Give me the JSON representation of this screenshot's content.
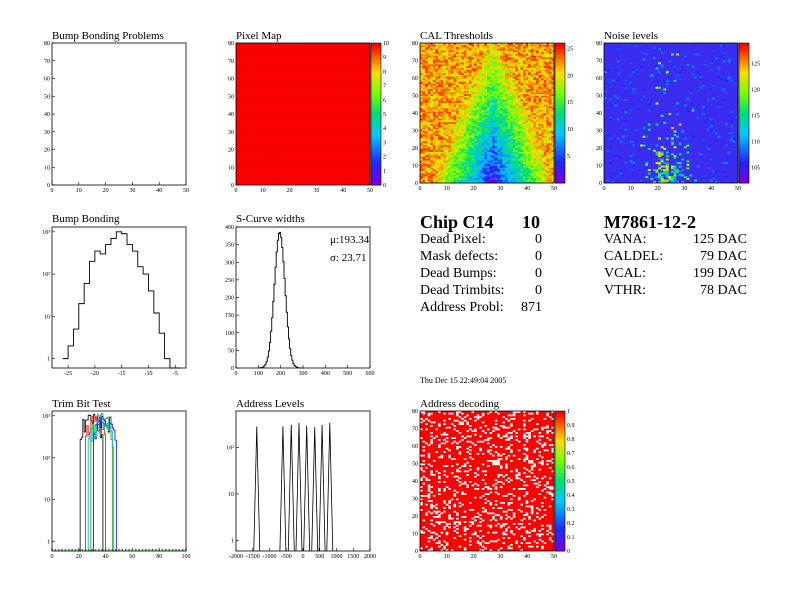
{
  "panels": {
    "bump_problems": {
      "title": "Bump Bonding Problems"
    },
    "pixel_map": {
      "title": "Pixel Map"
    },
    "cal_thresholds": {
      "title": "CAL Thresholds"
    },
    "noise_levels": {
      "title": "Noise levels"
    },
    "bump_bonding": {
      "title": "Bump Bonding"
    },
    "scurve_widths": {
      "title": "S-Curve widths",
      "mu": "μ:193.34",
      "sigma": "σ: 23.71"
    },
    "trim_bit": {
      "title": "Trim Bit Test"
    },
    "address_levels": {
      "title": "Address Levels"
    },
    "address_decoding": {
      "title": "Address decoding"
    }
  },
  "chip": {
    "name": "Chip C14",
    "number": "10",
    "rows": [
      {
        "label": "Dead Pixel:",
        "value": "0"
      },
      {
        "label": "Mask defects:",
        "value": "0"
      },
      {
        "label": "Dead Bumps:",
        "value": "0"
      },
      {
        "label": "Dead Trimbits:",
        "value": "0"
      },
      {
        "label": "Address Probl:",
        "value": "871"
      }
    ]
  },
  "module": {
    "name": "M7861-12-2",
    "rows": [
      {
        "label": "VANA:",
        "value": "125 DAC"
      },
      {
        "label": "CALDEL:",
        "value": "79 DAC"
      },
      {
        "label": "VCAL:",
        "value": "199 DAC"
      },
      {
        "label": "VTHR:",
        "value": "78 DAC"
      }
    ]
  },
  "timestamp": "Thu Dec 15 22:49:04 2005",
  "colors": {
    "red": "#ff0000",
    "frame": "#000000"
  },
  "chart_data": [
    {
      "id": "bump_problems",
      "type": "heatmap",
      "title": "Bump Bonding Problems",
      "xlim": [
        0,
        52
      ],
      "ylim": [
        0,
        80
      ],
      "xticks": [
        "0",
        "10",
        "20",
        "30",
        "40",
        "50"
      ],
      "yticks": [
        "0",
        "10",
        "20",
        "30",
        "40",
        "50",
        "60",
        "70",
        "80"
      ],
      "values": "empty"
    },
    {
      "id": "pixel_map",
      "type": "heatmap",
      "title": "Pixel Map",
      "xlim": [
        0,
        52
      ],
      "ylim": [
        0,
        80
      ],
      "xticks": [
        "0",
        "10",
        "20",
        "30",
        "40",
        "50"
      ],
      "yticks": [
        "0",
        "10",
        "20",
        "30",
        "40",
        "50",
        "60",
        "70",
        "80"
      ],
      "zticks": [
        "0",
        "1",
        "2",
        "3",
        "4",
        "5",
        "6",
        "7",
        "8",
        "9",
        "10"
      ],
      "zlim": [
        0,
        10
      ],
      "uniform_value": 10
    },
    {
      "id": "cal_thresholds",
      "type": "heatmap",
      "title": "CAL Thresholds",
      "xlim": [
        0,
        52
      ],
      "ylim": [
        0,
        80
      ],
      "xticks": [
        "0",
        "10",
        "20",
        "30",
        "40",
        "50"
      ],
      "yticks": [
        "0",
        "10",
        "20",
        "30",
        "40",
        "50",
        "60",
        "70",
        "80"
      ],
      "zticks": [
        "5",
        "10",
        "15",
        "20",
        "25"
      ],
      "zlim": [
        0,
        26
      ]
    },
    {
      "id": "noise_levels",
      "type": "heatmap",
      "title": "Noise levels",
      "xlim": [
        0,
        52
      ],
      "ylim": [
        0,
        80
      ],
      "xticks": [
        "0",
        "10",
        "20",
        "30",
        "40",
        "50"
      ],
      "yticks": [
        "0",
        "10",
        "20",
        "30",
        "40",
        "50",
        "60",
        "70",
        "80"
      ],
      "zticks": [
        "105",
        "110",
        "115",
        "120",
        "125"
      ],
      "zlim": [
        102,
        129
      ]
    },
    {
      "id": "bump_bonding",
      "type": "line",
      "title": "Bump Bonding",
      "log_y": true,
      "xlim": [
        -28,
        -3
      ],
      "ylim": [
        0.6,
        1300
      ],
      "xticks": [
        "-25",
        "-20",
        "-15",
        "-10",
        "-5"
      ],
      "yticks": [
        "1",
        "10",
        "10²",
        "10³"
      ],
      "series": [
        {
          "x": [
            -26,
            -25,
            -24,
            -23,
            -22,
            -21,
            -20,
            -19,
            -18,
            -17,
            -16,
            -15,
            -14,
            -13,
            -12,
            -11,
            -10,
            -9,
            -8,
            -7,
            -6,
            -5
          ],
          "y": [
            1,
            2,
            5,
            20,
            60,
            200,
            350,
            300,
            500,
            700,
            1000,
            900,
            500,
            350,
            150,
            100,
            40,
            12,
            4,
            1,
            0.6,
            0.6
          ]
        }
      ]
    },
    {
      "id": "scurve_widths",
      "type": "line",
      "title": "S-Curve widths",
      "xlim": [
        0,
        600
      ],
      "ylim": [
        0,
        420
      ],
      "xticks": [
        "0",
        "100",
        "200",
        "300",
        "400",
        "500",
        "600"
      ],
      "yticks": [
        "0",
        "50",
        "100",
        "150",
        "200",
        "250",
        "300",
        "350",
        "400"
      ],
      "series": [
        {
          "mean": 193.34,
          "sigma": 23.71,
          "peak": 405
        }
      ]
    },
    {
      "id": "trim_bit",
      "type": "line",
      "title": "Trim Bit Test",
      "log_y": true,
      "xlim": [
        0,
        100
      ],
      "ylim": [
        0.6,
        1300
      ],
      "xticks": [
        "0",
        "20",
        "40",
        "60",
        "80",
        "100"
      ],
      "yticks": [
        "1",
        "10",
        "10²",
        "10³"
      ],
      "series": [
        {
          "color": "#000000",
          "range": [
            20,
            38
          ],
          "peak": 1000
        },
        {
          "color": "#ff0000",
          "range": [
            24,
            40
          ],
          "peak": 900
        },
        {
          "color": "#00aa00",
          "range": [
            28,
            45
          ],
          "peak": 950
        },
        {
          "color": "#0000ff",
          "range": [
            30,
            48
          ],
          "peak": 900
        },
        {
          "color": "#00aaaa",
          "range": [
            26,
            46
          ],
          "peak": 700
        }
      ]
    },
    {
      "id": "address_levels",
      "type": "line",
      "title": "Address Levels",
      "log_y": true,
      "xlim": [
        -2000,
        2000
      ],
      "ylim": [
        0.6,
        600
      ],
      "xticks": [
        "-2000",
        "-1500",
        "-1000",
        "-500",
        "0",
        "500",
        "1000",
        "1500",
        "2000"
      ],
      "yticks": [
        "1",
        "10",
        "10²"
      ],
      "series": [
        {
          "peaks_x": [
            -1380,
            -600,
            -350,
            -120,
            110,
            350,
            570,
            800
          ],
          "peak_y": 300
        }
      ]
    },
    {
      "id": "address_decoding",
      "type": "heatmap",
      "title": "Address decoding",
      "xlim": [
        0,
        52
      ],
      "ylim": [
        0,
        80
      ],
      "xticks": [
        "0",
        "10",
        "20",
        "30",
        "40",
        "50"
      ],
      "yticks": [
        "0",
        "10",
        "20",
        "30",
        "40",
        "50",
        "60",
        "70",
        "80"
      ],
      "zticks": [
        "0",
        "0.1",
        "0.2",
        "0.3",
        "0.4",
        "0.5",
        "0.6",
        "0.7",
        "0.8",
        "0.9",
        "1"
      ],
      "zlim": [
        0,
        1
      ]
    }
  ]
}
